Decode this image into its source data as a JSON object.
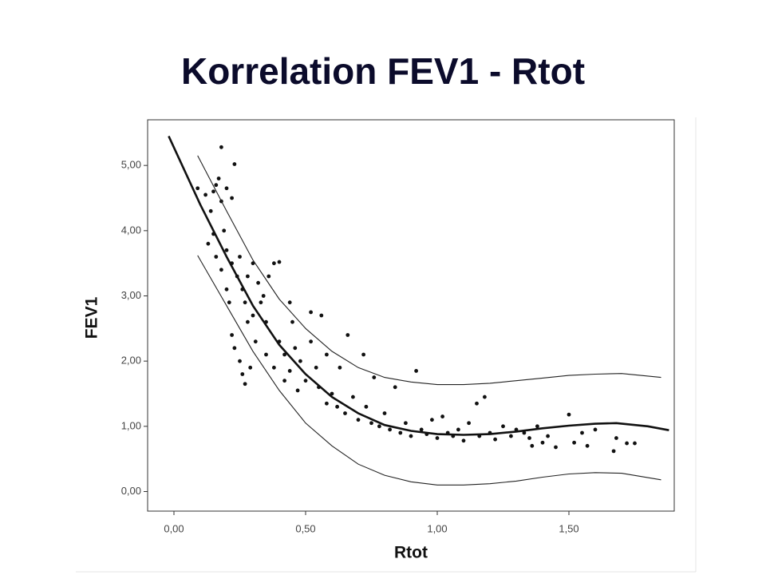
{
  "chart_data": {
    "type": "scatter",
    "title": "Korrelation FEV1 - Rtot",
    "xlabel": "Rtot",
    "ylabel": "FEV1",
    "xlim": [
      -0.1,
      1.9
    ],
    "ylim": [
      -0.3,
      5.7
    ],
    "xticks": [
      {
        "value": 0,
        "label": "0,00"
      },
      {
        "value": 0.5,
        "label": "0,50"
      },
      {
        "value": 1,
        "label": "1,00"
      },
      {
        "value": 1.5,
        "label": "1,50"
      }
    ],
    "yticks": [
      {
        "value": 0,
        "label": "0,00"
      },
      {
        "value": 1,
        "label": "1,00"
      },
      {
        "value": 2,
        "label": "2,00"
      },
      {
        "value": 3,
        "label": "3,00"
      },
      {
        "value": 4,
        "label": "4,00"
      },
      {
        "value": 5,
        "label": "5,00"
      }
    ],
    "grid": false,
    "series": [
      {
        "type": "scatter",
        "color": "#111111",
        "x": [
          0.09,
          0.12,
          0.14,
          0.15,
          0.16,
          0.17,
          0.18,
          0.18,
          0.2,
          0.22,
          0.23,
          0.19,
          0.15,
          0.13,
          0.16,
          0.18,
          0.2,
          0.22,
          0.24,
          0.25,
          0.26,
          0.27,
          0.28,
          0.3,
          0.32,
          0.22,
          0.23,
          0.25,
          0.26,
          0.27,
          0.28,
          0.3,
          0.31,
          0.33,
          0.35,
          0.36,
          0.38,
          0.35,
          0.38,
          0.4,
          0.42,
          0.44,
          0.45,
          0.46,
          0.48,
          0.5,
          0.52,
          0.54,
          0.55,
          0.56,
          0.58,
          0.6,
          0.62,
          0.63,
          0.65,
          0.66,
          0.68,
          0.7,
          0.72,
          0.73,
          0.75,
          0.76,
          0.78,
          0.8,
          0.82,
          0.84,
          0.86,
          0.88,
          0.9,
          0.92,
          0.94,
          0.96,
          0.98,
          1.0,
          1.02,
          1.04,
          1.06,
          1.08,
          1.1,
          1.12,
          1.15,
          1.16,
          1.18,
          1.2,
          1.22,
          1.25,
          1.28,
          1.3,
          1.33,
          1.35,
          1.36,
          1.38,
          1.4,
          1.42,
          1.45,
          1.5,
          1.52,
          1.55,
          1.57,
          1.6,
          1.67,
          1.68,
          1.72,
          1.75,
          0.34,
          0.4,
          0.44,
          0.52,
          0.29,
          0.21,
          0.2,
          0.42,
          0.47,
          0.58
        ],
        "values": [
          4.65,
          4.55,
          4.3,
          4.6,
          4.7,
          4.8,
          4.45,
          5.28,
          4.65,
          4.5,
          5.02,
          4.0,
          3.95,
          3.8,
          3.6,
          3.4,
          3.7,
          3.5,
          3.3,
          3.6,
          3.1,
          2.9,
          3.3,
          3.5,
          3.2,
          2.4,
          2.2,
          2.0,
          1.8,
          1.65,
          2.6,
          2.7,
          2.3,
          2.9,
          2.6,
          3.3,
          3.5,
          2.1,
          1.9,
          2.3,
          2.1,
          1.85,
          2.6,
          2.2,
          2.0,
          1.7,
          2.3,
          1.9,
          1.6,
          2.7,
          2.1,
          1.5,
          1.3,
          1.9,
          1.2,
          2.4,
          1.45,
          1.1,
          2.1,
          1.3,
          1.05,
          1.75,
          1.0,
          1.2,
          0.95,
          1.6,
          0.9,
          1.05,
          0.85,
          1.85,
          0.95,
          0.88,
          1.1,
          0.82,
          1.15,
          0.9,
          0.85,
          0.95,
          0.78,
          1.05,
          1.35,
          0.85,
          1.45,
          0.9,
          0.8,
          1.0,
          0.85,
          0.95,
          0.9,
          0.82,
          0.7,
          1.0,
          0.75,
          0.85,
          0.68,
          1.18,
          0.75,
          0.9,
          0.7,
          0.95,
          0.62,
          0.82,
          0.74,
          0.74,
          3.0,
          3.52,
          2.9,
          2.75,
          1.9,
          2.9,
          3.1,
          1.7,
          1.55,
          1.35
        ]
      },
      {
        "type": "line",
        "color": "#111111",
        "x": [
          -0.02,
          0.1,
          0.2,
          0.3,
          0.4,
          0.5,
          0.6,
          0.7,
          0.8,
          0.9,
          1.0,
          1.1,
          1.2,
          1.3,
          1.4,
          1.5,
          1.6,
          1.68,
          1.8,
          1.88
        ],
        "values": [
          5.45,
          4.4,
          3.6,
          2.85,
          2.25,
          1.8,
          1.45,
          1.2,
          1.02,
          0.93,
          0.88,
          0.87,
          0.88,
          0.92,
          0.97,
          1.01,
          1.04,
          1.05,
          1.0,
          0.94
        ]
      },
      {
        "type": "line",
        "color": "#222222",
        "x": [
          0.09,
          0.2,
          0.3,
          0.4,
          0.5,
          0.6,
          0.7,
          0.8,
          0.9,
          1.0,
          1.1,
          1.2,
          1.3,
          1.4,
          1.5,
          1.6,
          1.7,
          1.85
        ],
        "values": [
          5.15,
          4.3,
          3.55,
          2.95,
          2.5,
          2.15,
          1.9,
          1.75,
          1.68,
          1.64,
          1.64,
          1.66,
          1.7,
          1.74,
          1.78,
          1.8,
          1.81,
          1.75
        ]
      },
      {
        "type": "line",
        "color": "#222222",
        "x": [
          0.09,
          0.2,
          0.3,
          0.4,
          0.5,
          0.6,
          0.7,
          0.8,
          0.9,
          1.0,
          1.1,
          1.2,
          1.3,
          1.4,
          1.5,
          1.6,
          1.7,
          1.85
        ],
        "values": [
          3.62,
          2.85,
          2.15,
          1.55,
          1.05,
          0.7,
          0.42,
          0.25,
          0.15,
          0.1,
          0.1,
          0.12,
          0.16,
          0.22,
          0.27,
          0.29,
          0.28,
          0.18
        ]
      }
    ]
  }
}
